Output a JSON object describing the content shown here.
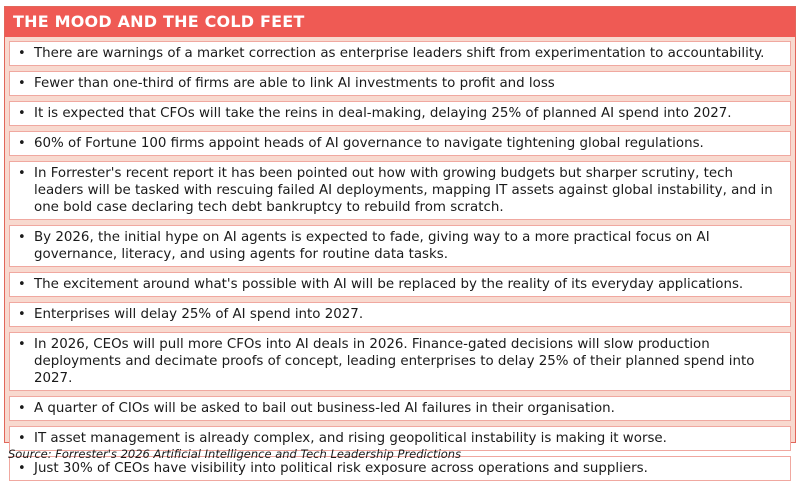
{
  "header": {
    "title": "THE MOOD AND THE COLD FEET"
  },
  "bullet_glyph": "•",
  "items": [
    "There are warnings of a market correction as enterprise leaders shift from experimentation to accountability.",
    "Fewer than one-third of firms are able to link AI investments to profit and loss",
    "It is expected that CFOs will take the reins in deal-making, delaying 25% of planned AI spend into 2027.",
    "60% of Fortune 100 firms appoint heads of AI governance to navigate tightening global regulations.",
    "In Forrester's recent report it has been pointed out how with growing budgets but sharper scrutiny, tech leaders will be tasked with rescuing failed AI deployments, mapping IT assets against global instability, and in one bold case declaring tech debt bankruptcy to rebuild from scratch.",
    "By 2026, the initial hype on AI agents is expected to fade, giving way to a more practical focus on AI governance, literacy, and using agents for routine data tasks.",
    "The excitement around what's possible with AI will be replaced by the reality of its everyday applications.",
    "Enterprises will delay 25% of AI spend into 2027.",
    "In 2026, CEOs will pull more CFOs into AI deals in 2026. Finance-gated decisions will slow production deployments and decimate proofs of concept, leading enterprises to delay 25% of their planned spend into 2027.",
    "A quarter of CIOs will be asked to bail out business-led AI failures in their organisation.",
    "IT asset management is already complex, and rising geopolitical instability is making it worse.",
    "Just 30% of CEOs have visibility into political risk exposure across operations and suppliers."
  ],
  "source": "Source: Forrester's 2026 Artificial Intelligence and Tech Leadership Predictions",
  "colors": {
    "header_bg": "#ef5a54",
    "panel_bg": "#f8d9cf",
    "item_border": "#f0a8a0"
  }
}
